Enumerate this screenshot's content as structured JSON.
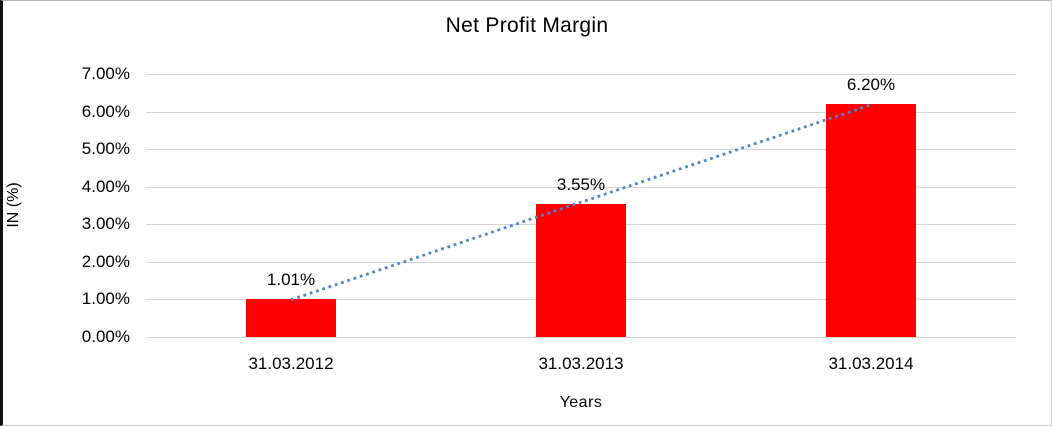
{
  "chart_data": {
    "type": "bar",
    "title": "Net Profit Margin",
    "xlabel": "Years",
    "ylabel": "IN (%)",
    "categories": [
      "31.03.2012",
      "31.03.2013",
      "31.03.2014"
    ],
    "values": [
      1.01,
      3.55,
      6.2
    ],
    "data_labels": [
      "1.01%",
      "3.55%",
      "6.20%"
    ],
    "ylim": [
      0,
      7
    ],
    "ytick_values": [
      0,
      1,
      2,
      3,
      4,
      5,
      6,
      7
    ],
    "ytick_labels": [
      "0.00%",
      "1.00%",
      "2.00%",
      "3.00%",
      "4.00%",
      "5.00%",
      "6.00%",
      "7.00%"
    ],
    "grid": true,
    "legend": false,
    "bar_color": "#ff0000",
    "gridline_color": "#d6d6d6",
    "trendline": {
      "type": "linear",
      "style": "dotted",
      "color": "#4e86c8"
    }
  }
}
